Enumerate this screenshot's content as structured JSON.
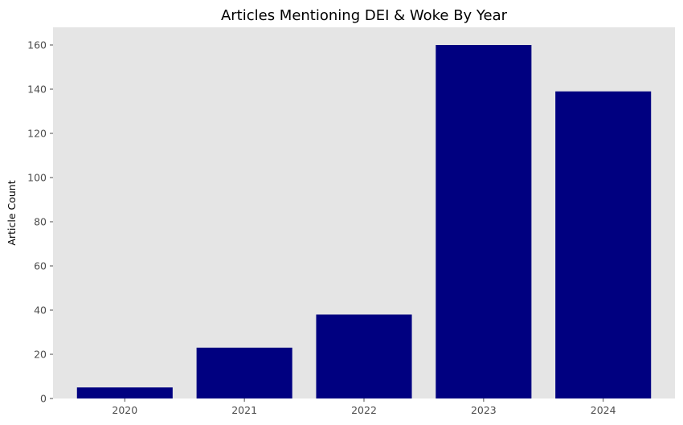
{
  "chart_data": {
    "type": "bar",
    "title": "Articles Mentioning DEI & Woke By Year",
    "xlabel": "",
    "ylabel": "Article Count",
    "categories": [
      "2020",
      "2021",
      "2022",
      "2023",
      "2024"
    ],
    "values": [
      5,
      23,
      38,
      160,
      139
    ],
    "ylim": [
      0,
      168
    ],
    "yticks": [
      0,
      20,
      40,
      60,
      80,
      100,
      120,
      140,
      160
    ],
    "grid": false,
    "bar_color": "#000080",
    "background_color": "#e5e5e5"
  }
}
